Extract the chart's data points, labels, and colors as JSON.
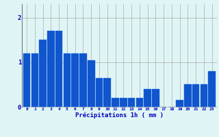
{
  "hours": [
    0,
    1,
    2,
    3,
    4,
    5,
    6,
    7,
    8,
    9,
    10,
    11,
    12,
    13,
    14,
    15,
    16,
    17,
    18,
    19,
    20,
    21,
    22,
    23
  ],
  "values": [
    1.2,
    1.2,
    1.5,
    1.7,
    1.7,
    1.2,
    1.2,
    1.2,
    1.05,
    0.65,
    0.65,
    0.2,
    0.2,
    0.2,
    0.2,
    0.4,
    0.4,
    0.0,
    0.0,
    0.15,
    0.5,
    0.5,
    0.5,
    0.8
  ],
  "bar_color": "#1155cc",
  "bar_edge_color": "#1166ee",
  "background_color": "#dff5f5",
  "grid_color": "#aaaaaa",
  "xlabel": "Précipitations 1h ( mm )",
  "xlabel_color": "#0000bb",
  "tick_color": "#0000bb",
  "yticks": [
    0,
    1,
    2
  ],
  "ylim": [
    0,
    2.3
  ],
  "xlim": [
    -0.6,
    23.6
  ]
}
